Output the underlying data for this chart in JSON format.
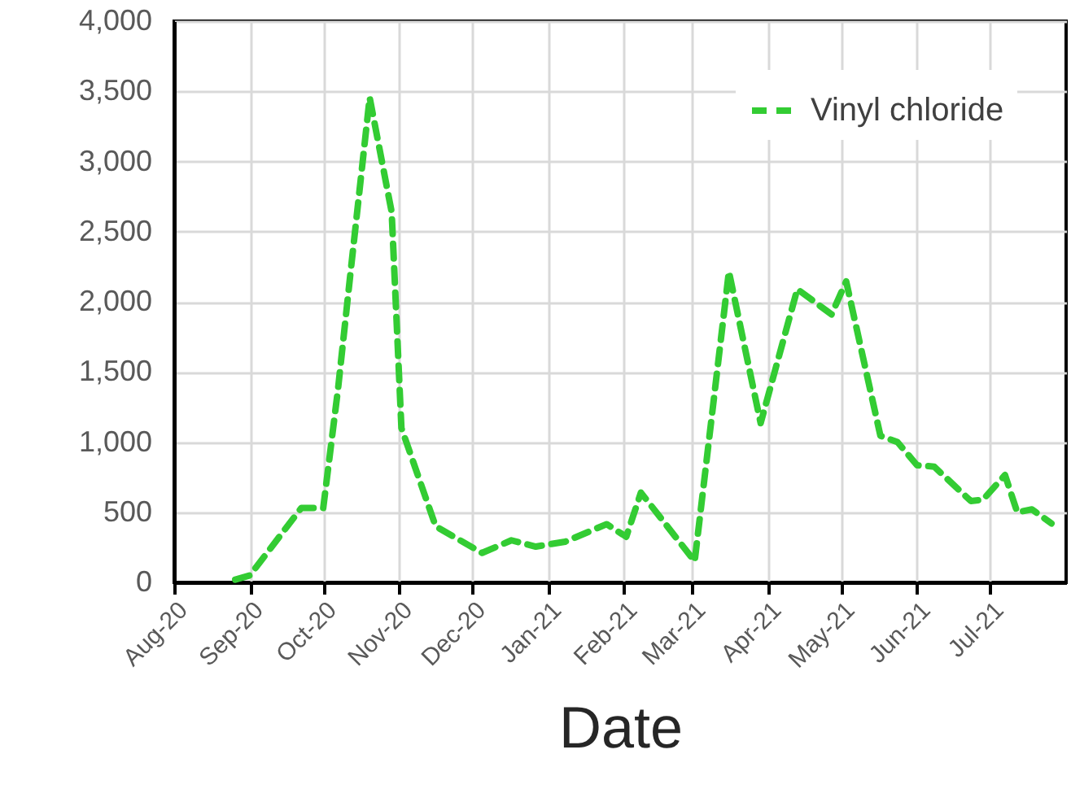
{
  "chart_data": {
    "type": "line",
    "xlabel": "Date",
    "x": [
      "2020-08-26",
      "2020-09-01",
      "2020-09-22",
      "2020-10-01",
      "2020-10-07",
      "2020-10-12",
      "2020-10-20",
      "2020-10-29",
      "2020-11-02",
      "2020-11-16",
      "2020-12-05",
      "2020-12-17",
      "2020-12-27",
      "2021-01-08",
      "2021-01-25",
      "2021-02-02",
      "2021-02-08",
      "2021-03-02",
      "2021-03-16",
      "2021-03-29",
      "2021-04-13",
      "2021-04-27",
      "2021-05-03",
      "2021-05-17",
      "2021-05-24",
      "2021-06-01",
      "2021-06-08",
      "2021-06-23",
      "2021-06-28",
      "2021-07-07",
      "2021-07-12",
      "2021-07-18",
      "2021-07-26"
    ],
    "series": [
      {
        "name": "Vinyl chloride",
        "color": "#33cc33",
        "values": [
          20,
          50,
          530,
          530,
          1370,
          2180,
          3455,
          2640,
          1100,
          400,
          210,
          300,
          255,
          290,
          415,
          325,
          640,
          150,
          2215,
          1135,
          2090,
          1910,
          2145,
          1045,
          1000,
          835,
          825,
          580,
          590,
          765,
          500,
          520,
          420
        ]
      }
    ],
    "xlim": [
      "2020-08-01",
      "2021-08-01"
    ],
    "xticks": [
      {
        "value": "2020-08-01",
        "label": "Aug-20"
      },
      {
        "value": "2020-09-01",
        "label": "Sep-20"
      },
      {
        "value": "2020-10-01",
        "label": "Oct-20"
      },
      {
        "value": "2020-11-01",
        "label": "Nov-20"
      },
      {
        "value": "2020-12-01",
        "label": "Dec-20"
      },
      {
        "value": "2021-01-01",
        "label": "Jan-21"
      },
      {
        "value": "2021-02-01",
        "label": "Feb-21"
      },
      {
        "value": "2021-03-01",
        "label": "Mar-21"
      },
      {
        "value": "2021-04-01",
        "label": "Apr-21"
      },
      {
        "value": "2021-05-01",
        "label": "May-21"
      },
      {
        "value": "2021-06-01",
        "label": "Jun-21"
      },
      {
        "value": "2021-07-01",
        "label": "Jul-21"
      }
    ],
    "ylim": [
      0,
      4000
    ],
    "yticks": [
      0,
      {
        "value": 500,
        "label": "500"
      },
      {
        "value": 1000,
        "label": "1,000"
      },
      {
        "value": 1500,
        "label": "1,500"
      },
      {
        "value": 2000,
        "label": "2,000"
      },
      {
        "value": 2500,
        "label": "2,500"
      },
      {
        "value": 3000,
        "label": "3,000"
      },
      {
        "value": 3500,
        "label": "3,500"
      },
      {
        "value": 4000,
        "label": "4,000"
      }
    ],
    "grid": true,
    "legend": "top right",
    "line_style": "dashed",
    "marker": "none"
  }
}
